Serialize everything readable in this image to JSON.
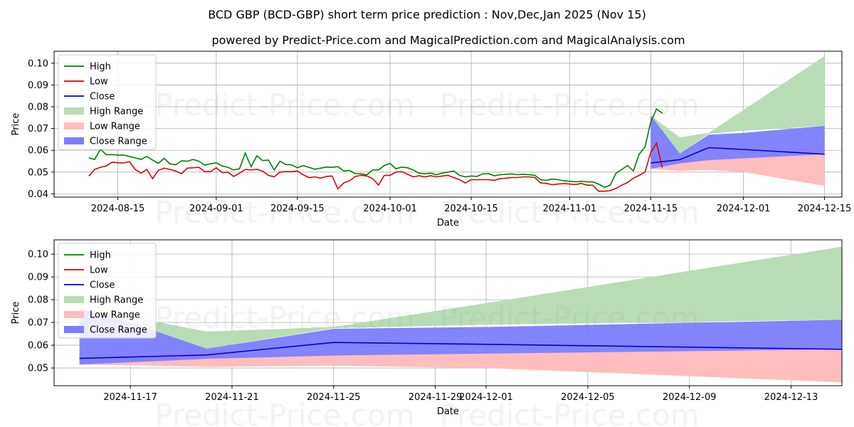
{
  "title": "BCD GBP (BCD-GBP) short term price prediction : Nov,Dec,Jan 2025 (Nov 15)",
  "subtitle": "powered by Predict-Price.com and MagicalPrediction.com and MagicalAnalysis.com",
  "watermark": "Predict-Price.com",
  "colors": {
    "high": "#008000",
    "low": "#e00000",
    "close": "#0000cc",
    "high_range": "#b9dcb6",
    "low_range": "#ffbdbd",
    "close_range": "#7d7dff",
    "close_range_overlap": "#6a4fcf"
  },
  "legend": [
    "High",
    "Low",
    "Close",
    "High Range",
    "Low Range",
    "Close Range"
  ],
  "chart_data": [
    {
      "type": "line",
      "xlabel": "Date",
      "ylabel": "Price",
      "xlim": [
        "2024-08-04",
        "2024-12-18"
      ],
      "ylim": [
        0.0385,
        0.1055
      ],
      "yticks": [
        0.04,
        0.05,
        0.06,
        0.07,
        0.08,
        0.09,
        0.1
      ],
      "ytick_labels": [
        "0.04",
        "0.05",
        "0.06",
        "0.07",
        "0.08",
        "0.09",
        "0.10"
      ],
      "xticks": [
        "2024-08-15",
        "2024-09-01",
        "2024-09-15",
        "2024-10-01",
        "2024-10-15",
        "2024-11-01",
        "2024-11-15",
        "2024-12-01",
        "2024-12-15"
      ],
      "legend_location": "top-left",
      "grid": true,
      "history_start": "2024-08-10",
      "high": [
        0.0565,
        0.0558,
        0.0605,
        0.058,
        0.058,
        0.0578,
        0.0578,
        0.0572,
        0.0565,
        0.0558,
        0.0572,
        0.0555,
        0.054,
        0.0563,
        0.0538,
        0.0533,
        0.0552,
        0.055,
        0.0558,
        0.055,
        0.0532,
        0.0538,
        0.0543,
        0.0528,
        0.0522,
        0.051,
        0.0515,
        0.0587,
        0.0525,
        0.0575,
        0.0553,
        0.0555,
        0.051,
        0.055,
        0.0535,
        0.0533,
        0.052,
        0.053,
        0.0522,
        0.0513,
        0.0518,
        0.0523,
        0.0522,
        0.0525,
        0.0505,
        0.0508,
        0.0493,
        0.0492,
        0.0488,
        0.051,
        0.051,
        0.053,
        0.054,
        0.0515,
        0.0523,
        0.052,
        0.051,
        0.0495,
        0.0492,
        0.0495,
        0.0488,
        0.0495,
        0.05,
        0.0505,
        0.0485,
        0.0478,
        0.0482,
        0.048,
        0.0492,
        0.0493,
        0.0483,
        0.0488,
        0.049,
        0.0492,
        0.0488,
        0.049,
        0.0488,
        0.0485,
        0.0465,
        0.0462,
        0.0468,
        0.0465,
        0.046,
        0.0458,
        0.0455,
        0.0458,
        0.0455,
        0.0455,
        0.0445,
        0.043,
        0.044,
        0.0495,
        0.0512,
        0.053,
        0.0505,
        0.0582,
        0.0615,
        0.073,
        0.079,
        0.077
      ],
      "low": [
        0.0482,
        0.0512,
        0.0522,
        0.0528,
        0.0545,
        0.0543,
        0.0542,
        0.0548,
        0.0512,
        0.0495,
        0.0512,
        0.047,
        0.0508,
        0.0518,
        0.0512,
        0.0505,
        0.0493,
        0.0518,
        0.052,
        0.0522,
        0.0502,
        0.0502,
        0.052,
        0.0498,
        0.05,
        0.048,
        0.0495,
        0.0512,
        0.051,
        0.0512,
        0.0505,
        0.0485,
        0.0478,
        0.05,
        0.0502,
        0.0502,
        0.0505,
        0.0488,
        0.0475,
        0.0478,
        0.0472,
        0.048,
        0.0482,
        0.0423,
        0.045,
        0.046,
        0.048,
        0.0485,
        0.0482,
        0.047,
        0.044,
        0.0485,
        0.0485,
        0.05,
        0.0502,
        0.049,
        0.0478,
        0.0483,
        0.0478,
        0.0483,
        0.0478,
        0.0482,
        0.0485,
        0.0475,
        0.0465,
        0.045,
        0.0465,
        0.0465,
        0.0465,
        0.0465,
        0.0462,
        0.047,
        0.0472,
        0.0475,
        0.0475,
        0.0478,
        0.0478,
        0.0475,
        0.045,
        0.0448,
        0.0442,
        0.0445,
        0.0447,
        0.0445,
        0.0443,
        0.0448,
        0.044,
        0.044,
        0.0412,
        0.0412,
        0.0415,
        0.0425,
        0.044,
        0.0452,
        0.0472,
        0.0485,
        0.05,
        0.059,
        0.0633,
        0.052
      ],
      "forecast_dates": [
        "2024-11-15",
        "2024-11-20",
        "2024-11-25",
        "2024-12-01",
        "2024-12-15"
      ],
      "close_forecast": [
        0.0542,
        0.0557,
        0.0612,
        0.0604,
        0.0582
      ],
      "high_range_upper": [
        0.076,
        0.066,
        0.068,
        0.0785,
        0.1033
      ],
      "high_range_lower": [
        0.054,
        0.0585,
        0.0675,
        0.069,
        0.0712
      ],
      "low_range_upper": [
        0.054,
        0.0575,
        0.056,
        0.0565,
        0.0582
      ],
      "low_range_lower": [
        0.0515,
        0.0505,
        0.051,
        0.05,
        0.0437
      ],
      "close_range_upper": [
        0.076,
        0.0585,
        0.0672,
        0.068,
        0.0712
      ],
      "close_range_lower": [
        0.0515,
        0.054,
        0.0555,
        0.0563,
        0.0582
      ]
    },
    {
      "type": "line",
      "xlabel": "Date",
      "ylabel": "Price",
      "xlim": [
        "2024-11-14",
        "2024-12-15"
      ],
      "ylim": [
        0.0422,
        0.1063
      ],
      "yticks": [
        0.05,
        0.06,
        0.07,
        0.08,
        0.09,
        0.1
      ],
      "ytick_labels": [
        "0.05",
        "0.06",
        "0.07",
        "0.08",
        "0.09",
        "0.10"
      ],
      "xticks": [
        "2024-11-17",
        "2024-11-21",
        "2024-11-25",
        "2024-11-29",
        "2024-12-01",
        "2024-12-05",
        "2024-12-09",
        "2024-12-13"
      ],
      "legend_location": "top-left",
      "grid": true,
      "forecast_dates": [
        "2024-11-15",
        "2024-11-17",
        "2024-11-20",
        "2024-11-25",
        "2024-12-01",
        "2024-12-15"
      ],
      "close_forecast": [
        0.0542,
        0.0548,
        0.0557,
        0.0612,
        0.0604,
        0.0582
      ],
      "high_range_upper": [
        0.076,
        0.0725,
        0.066,
        0.068,
        0.0785,
        0.1033
      ],
      "high_range_lower": [
        0.054,
        0.056,
        0.0585,
        0.0675,
        0.069,
        0.0712
      ],
      "low_range_upper": [
        0.054,
        0.055,
        0.0575,
        0.056,
        0.0565,
        0.0582
      ],
      "low_range_lower": [
        0.0515,
        0.0512,
        0.0505,
        0.051,
        0.05,
        0.0437
      ],
      "close_range_upper": [
        0.076,
        0.07,
        0.0585,
        0.0672,
        0.068,
        0.0712
      ],
      "close_range_lower": [
        0.0515,
        0.0525,
        0.054,
        0.0555,
        0.0563,
        0.0582
      ]
    }
  ]
}
